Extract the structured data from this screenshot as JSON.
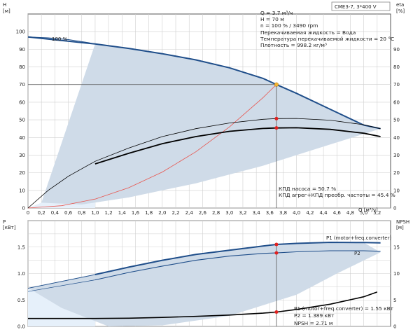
{
  "chart_data": [
    {
      "type": "line",
      "panel": "top",
      "title": "CME3-7, 3*400 V",
      "xlabel": "Q [м³/ч]",
      "xlabel_unit": "Q [м³/ч]",
      "ylabel_left": "H",
      "ylabel_left_unit": "[м]",
      "ylabel_right": "eta",
      "ylabel_right_unit": "[%]",
      "xlim": [
        0,
        5.4
      ],
      "ylim": [
        0,
        110
      ],
      "grid": true,
      "x_ticks": [
        "0",
        "0,2",
        "0,4",
        "0,6",
        "0,8",
        "1,0",
        "1,2",
        "1,4",
        "1,6",
        "1,8",
        "2,0",
        "2,2",
        "2,4",
        "2,6",
        "2,8",
        "3,0",
        "3,2",
        "3,4",
        "3,6",
        "3,8",
        "4,0",
        "4,2",
        "4,4",
        "4,6",
        "4,8",
        "5,0",
        "5,2"
      ],
      "y_ticks_left": [
        "0",
        "10",
        "20",
        "30",
        "40",
        "50",
        "60",
        "70",
        "80",
        "90",
        "100"
      ],
      "y_ticks_right": [
        "0",
        "10",
        "20",
        "30",
        "40",
        "50",
        "60",
        "70",
        "80",
        "90"
      ],
      "speed_label": "100 %",
      "info_lines": [
        "Q = 3.7 м³/ч",
        "H = 70 м",
        "n = 100 % / 3490 rpm",
        "Перекачиваемая жидкость = Вода",
        "Температура перекачиваемой жидкости = 20 °C",
        "Плотность = 998.2 кг/м³"
      ],
      "eff_lines": [
        "КПД насоса = 50.7 %",
        "КПД агрег+КПД преобр. частоты = 45.4 %"
      ],
      "duty_point": {
        "q": 3.7,
        "h": 70
      },
      "head_curve": {
        "x": [
          0,
          1.0,
          1.5,
          2.0,
          2.5,
          3.0,
          3.5,
          3.7,
          4.0,
          4.5,
          5.0,
          5.25
        ],
        "y": [
          97,
          93,
          90.5,
          87.5,
          84,
          79.5,
          73.5,
          70,
          65,
          56,
          47,
          45
        ]
      },
      "head_curve_extrap": {
        "x": [
          0,
          0.3,
          0.6,
          0.9,
          1.0
        ],
        "y": [
          97,
          96.5,
          95.5,
          93.8,
          93
        ]
      },
      "system_curve": {
        "x": [
          0,
          0.5,
          1.0,
          1.5,
          2.0,
          2.5,
          3.0,
          3.5,
          3.7
        ],
        "y": [
          0,
          1.3,
          5.1,
          11.5,
          20.4,
          31.9,
          46,
          62.6,
          70
        ]
      },
      "pump_eff_curve": {
        "x": [
          0,
          0.3,
          0.6,
          1.0,
          1.5,
          2.0,
          2.5,
          3.0,
          3.5,
          3.7,
          4.0,
          4.5,
          5.0,
          5.25
        ],
        "y": [
          0,
          10,
          18,
          26.5,
          34,
          40.5,
          45,
          48.2,
          50.3,
          50.7,
          50.8,
          49.8,
          47.2,
          45
        ]
      },
      "total_eff_curve": {
        "x": [
          1.0,
          1.5,
          2.0,
          2.5,
          3.0,
          3.5,
          3.7,
          4.0,
          4.5,
          5.0,
          5.25
        ],
        "y": [
          25,
          31,
          36.5,
          40.5,
          43.5,
          45.1,
          45.4,
          45.5,
          44.6,
          42.4,
          40.5
        ]
      },
      "eff_points": [
        {
          "q": 3.7,
          "eta": 50.7
        },
        {
          "q": 3.7,
          "eta": 45.4
        }
      ],
      "shade_envelope": {
        "x": [
          0.2,
          1.0,
          1.5,
          2.0,
          2.5,
          3.0,
          3.5,
          4.0,
          4.5,
          5.0,
          5.25,
          4.5,
          3.5,
          2.5,
          1.5,
          0.8,
          0.2
        ],
        "y": [
          3,
          93,
          90.5,
          87.5,
          84,
          79.5,
          73.5,
          65,
          56,
          47,
          45,
          36,
          24,
          14,
          6,
          2,
          3
        ]
      },
      "light_region": {
        "x": [
          0,
          0.2,
          1.0,
          1.0,
          0
        ],
        "y": [
          0,
          3,
          93,
          0,
          0
        ]
      },
      "colors": {
        "head": "#1f4e8a",
        "shade": "#cfdbe8",
        "light": "#e6f0fa",
        "system": "#e8554e",
        "eff": "#000000",
        "duty": "#f3b233",
        "point": "#e0211f"
      }
    },
    {
      "type": "line",
      "panel": "bottom",
      "xlim": [
        0,
        5.4
      ],
      "ylim": [
        0,
        2.0
      ],
      "ylabel_left": "P",
      "ylabel_left_unit": "[кВт]",
      "ylabel_right": "NPSH",
      "ylabel_right_unit": "[м]",
      "grid": true,
      "y_ticks_left": [
        "0.0",
        "0.5",
        "1.0",
        "1.5"
      ],
      "y_ticks_right": [
        "0",
        "5",
        "10",
        "15"
      ],
      "series": [
        {
          "name": "P1 (motor+freq.converter)",
          "x": [
            0,
            1.0,
            1.5,
            2.0,
            2.5,
            3.0,
            3.5,
            3.7,
            4.0,
            4.5,
            5.0,
            5.25
          ],
          "y": [
            0.72,
            0.98,
            1.12,
            1.25,
            1.36,
            1.44,
            1.52,
            1.55,
            1.57,
            1.59,
            1.585,
            1.58
          ]
        },
        {
          "name": "P2",
          "x": [
            0,
            1.0,
            1.5,
            2.0,
            2.5,
            3.0,
            3.5,
            3.7,
            4.0,
            4.5,
            5.0,
            5.25
          ],
          "y": [
            0.66,
            0.88,
            1.02,
            1.14,
            1.25,
            1.33,
            1.38,
            1.389,
            1.41,
            1.43,
            1.43,
            1.42
          ]
        },
        {
          "name": "NPSH",
          "x": [
            0,
            1.0,
            1.5,
            2.0,
            2.5,
            3.0,
            3.5,
            3.7,
            4.0,
            4.5,
            5.0,
            5.2
          ],
          "y": [
            1.5,
            1.5,
            1.55,
            1.7,
            1.9,
            2.15,
            2.5,
            2.71,
            3.2,
            4.2,
            5.6,
            6.5
          ],
          "axis": "right"
        }
      ],
      "power_points": [
        {
          "q": 3.7,
          "p": 1.55
        },
        {
          "q": 3.7,
          "p": 1.389
        }
      ],
      "npsh_point": {
        "q": 3.7,
        "npsh": 2.71
      },
      "shade_envelope": {
        "x": [
          0,
          1.0,
          1.5,
          2.0,
          2.5,
          3.0,
          3.5,
          4.0,
          4.5,
          5.0,
          5.25,
          4.6,
          4.0,
          3.0,
          2.0,
          1.2,
          0.5,
          0
        ],
        "y": [
          0.73,
          0.98,
          1.12,
          1.25,
          1.36,
          1.44,
          1.52,
          1.57,
          1.59,
          1.585,
          1.4,
          1.0,
          0.6,
          0.2,
          0.02,
          0,
          0.35,
          0.73
        ]
      },
      "light_region": {
        "x": [
          0,
          1.0,
          1.0,
          0
        ],
        "y": [
          0.7,
          0.97,
          0,
          0
        ]
      },
      "series_labels": [
        "P1 (motor+freq.converter)",
        "P2"
      ],
      "summary_lines": [
        "P1 (motor+freq.converter) = 1.55 кВт",
        "P2 = 1.389 кВт",
        "NPSH = 2.71 м"
      ]
    }
  ]
}
